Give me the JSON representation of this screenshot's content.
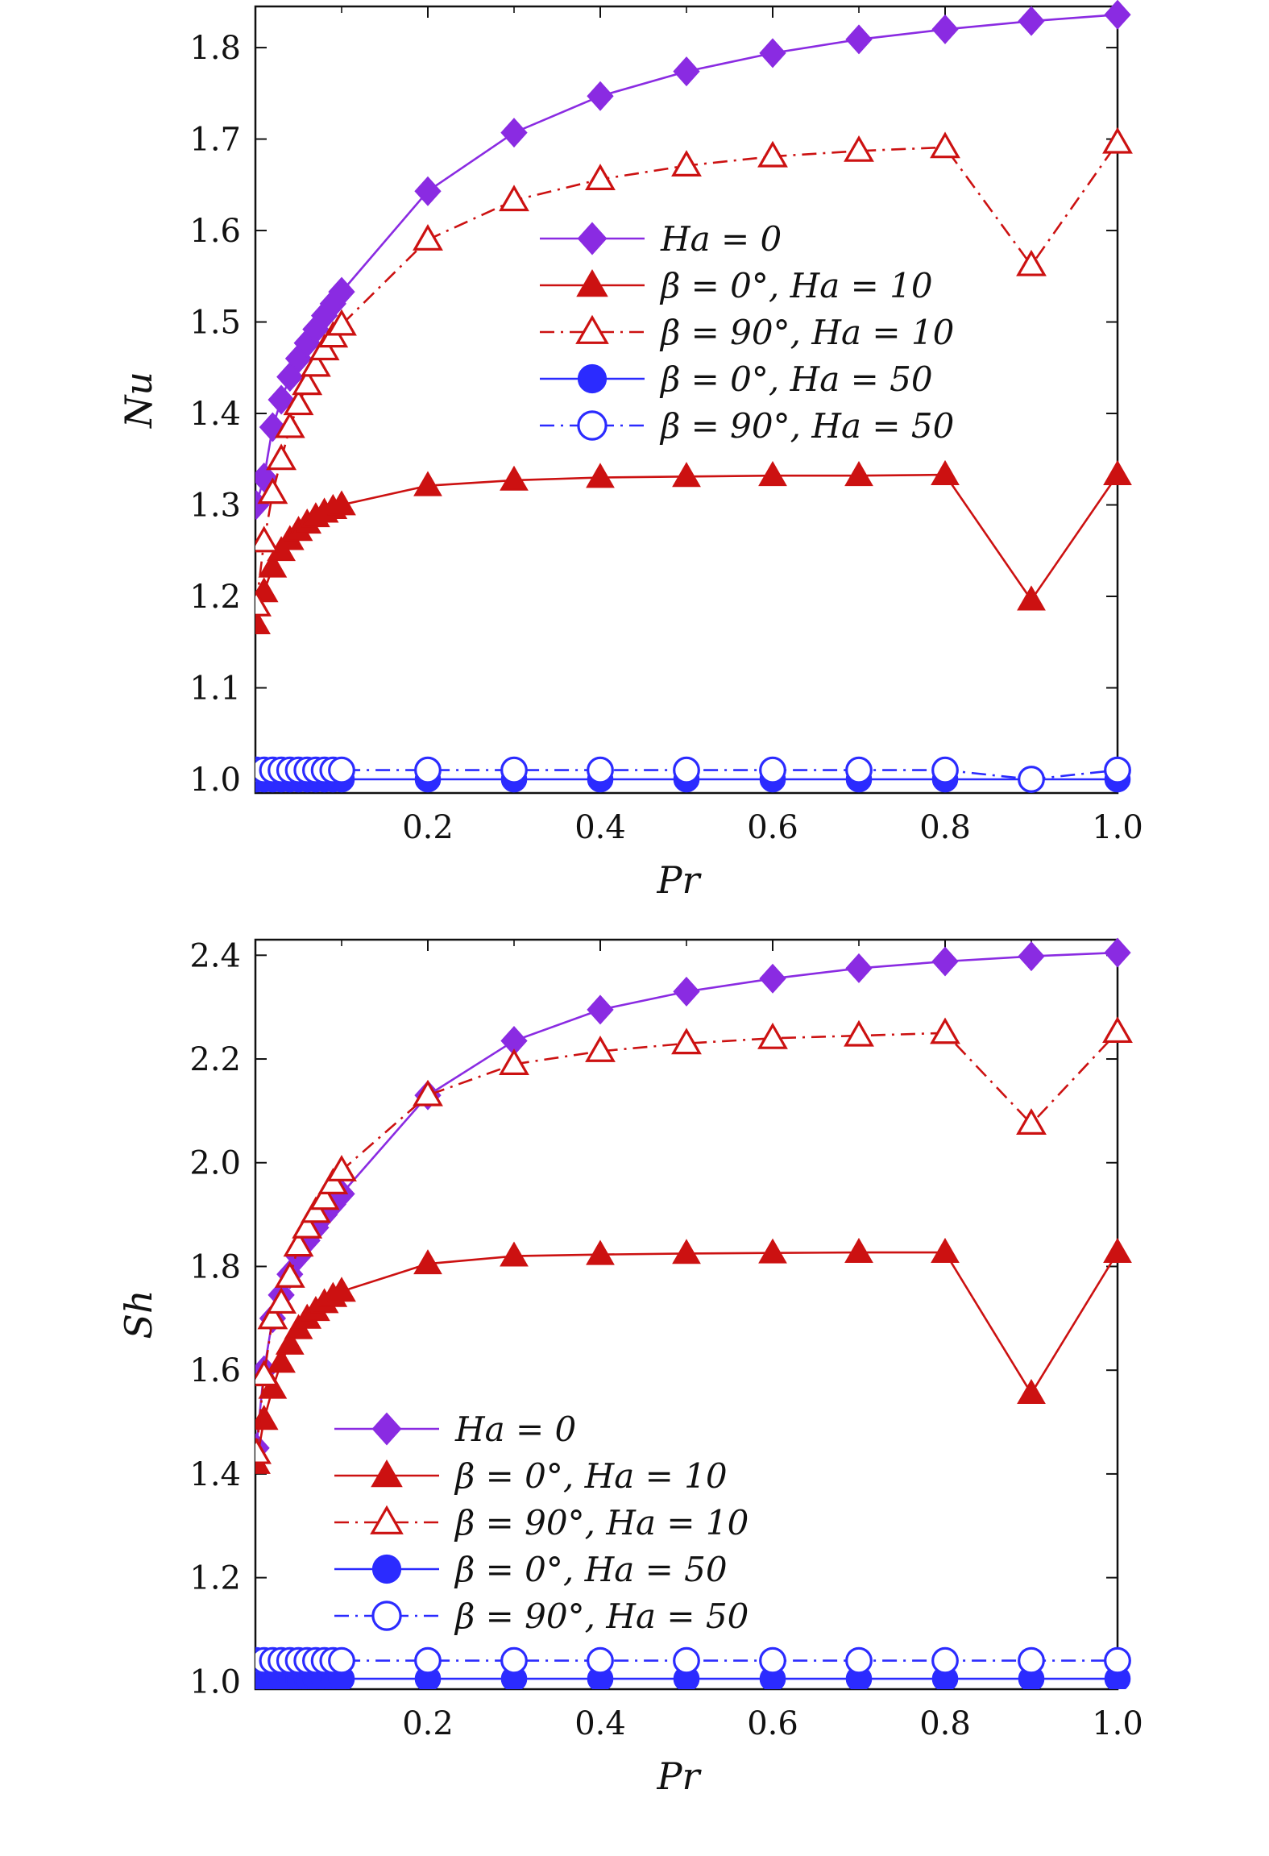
{
  "figure": {
    "panels": 2
  },
  "chart_data": [
    {
      "type": "line",
      "id": "nu",
      "xlabel": "Pr",
      "ylabel": "Nu",
      "xlim": [
        0,
        1.0
      ],
      "ylim": [
        0.985,
        1.845
      ],
      "xticks": [
        0.2,
        0.4,
        0.6,
        0.8,
        1.0
      ],
      "xtick_labels": [
        "0.2",
        "0.4",
        "0.6",
        "0.8",
        "1.0"
      ],
      "yticks": [
        1.0,
        1.1,
        1.2,
        1.3,
        1.4,
        1.5,
        1.6,
        1.7,
        1.8
      ],
      "ytick_labels": [
        "1.0",
        "1.1",
        "1.2",
        "1.3",
        "1.4",
        "1.5",
        "1.6",
        "1.7",
        "1.8"
      ],
      "legend_position": "center-right",
      "x": [
        0.001,
        0.01,
        0.02,
        0.03,
        0.04,
        0.05,
        0.06,
        0.07,
        0.08,
        0.09,
        0.1,
        0.2,
        0.3,
        0.4,
        0.5,
        0.6,
        0.7,
        0.8,
        0.9,
        1.0
      ],
      "series": [
        {
          "name": "Ha = 0",
          "label": "Ha = 0",
          "color": "#8a2be2",
          "marker": "diamond",
          "filled": true,
          "dash": "solid",
          "values": [
            1.3,
            1.33,
            1.385,
            1.415,
            1.44,
            1.46,
            1.477,
            1.492,
            1.507,
            1.52,
            1.533,
            1.643,
            1.707,
            1.747,
            1.774,
            1.794,
            1.809,
            1.82,
            1.829,
            1.836
          ]
        },
        {
          "name": "β = 0°, Ha = 10",
          "label": "β = 0°, Ha = 10",
          "color": "#cc1111",
          "marker": "triangle",
          "filled": true,
          "dash": "solid",
          "values": [
            1.17,
            1.205,
            1.232,
            1.25,
            1.262,
            1.272,
            1.28,
            1.287,
            1.292,
            1.296,
            1.3,
            1.321,
            1.327,
            1.33,
            1.331,
            1.332,
            1.332,
            1.333,
            1.196,
            1.333
          ]
        },
        {
          "name": "β = 90°, Ha = 10",
          "label": "β = 90°, Ha = 10",
          "color": "#cc1111",
          "marker": "triangle",
          "filled": false,
          "dash": "dashdot",
          "values": [
            1.19,
            1.26,
            1.313,
            1.35,
            1.385,
            1.41,
            1.432,
            1.452,
            1.47,
            1.484,
            1.497,
            1.59,
            1.633,
            1.656,
            1.671,
            1.681,
            1.687,
            1.691,
            1.562,
            1.696
          ]
        },
        {
          "name": "β = 0°, Ha = 50",
          "label": "β = 0°, Ha = 50",
          "color": "#2b2bff",
          "marker": "circle",
          "filled": true,
          "dash": "solid",
          "values": [
            1.0,
            1.0,
            1.0,
            1.0,
            1.0,
            1.0,
            1.0,
            1.0,
            1.0,
            1.0,
            1.0,
            1.0,
            1.0,
            1.0,
            1.0,
            1.0,
            1.0,
            1.0,
            1.0,
            1.0
          ]
        },
        {
          "name": "β = 90°, Ha = 50",
          "label": "β = 90°, Ha = 50",
          "color": "#2b2bff",
          "marker": "circle",
          "filled": false,
          "dash": "dashdot",
          "values": [
            1.01,
            1.01,
            1.01,
            1.01,
            1.01,
            1.01,
            1.01,
            1.01,
            1.01,
            1.01,
            1.01,
            1.01,
            1.01,
            1.01,
            1.01,
            1.01,
            1.01,
            1.01,
            1.0,
            1.01
          ]
        }
      ]
    },
    {
      "type": "line",
      "id": "sh",
      "xlabel": "Pr",
      "ylabel": "Sh",
      "xlim": [
        0,
        1.0
      ],
      "ylim": [
        0.985,
        2.43
      ],
      "xticks": [
        0.2,
        0.4,
        0.6,
        0.8,
        1.0
      ],
      "xtick_labels": [
        "0.2",
        "0.4",
        "0.6",
        "0.8",
        "1.0"
      ],
      "yticks": [
        1.0,
        1.2,
        1.4,
        1.6,
        1.8,
        2.0,
        2.2,
        2.4
      ],
      "ytick_labels": [
        "1.0",
        "1.2",
        "1.4",
        "1.6",
        "1.8",
        "2.0",
        "2.2",
        "2.4"
      ],
      "legend_position": "lower-left",
      "x": [
        0.001,
        0.01,
        0.02,
        0.03,
        0.04,
        0.05,
        0.06,
        0.07,
        0.08,
        0.09,
        0.1,
        0.2,
        0.3,
        0.4,
        0.5,
        0.6,
        0.7,
        0.8,
        0.9,
        1.0
      ],
      "series": [
        {
          "name": "Ha = 0",
          "label": "Ha = 0",
          "color": "#8a2be2",
          "marker": "diamond",
          "filled": true,
          "dash": "solid",
          "values": [
            1.45,
            1.6,
            1.7,
            1.745,
            1.785,
            1.82,
            1.85,
            1.875,
            1.9,
            1.92,
            1.94,
            2.13,
            2.235,
            2.295,
            2.33,
            2.355,
            2.375,
            2.388,
            2.398,
            2.405
          ]
        },
        {
          "name": "β = 0°, Ha = 10",
          "label": "β = 0°, Ha = 10",
          "color": "#cc1111",
          "marker": "triangle",
          "filled": true,
          "dash": "solid",
          "values": [
            1.42,
            1.505,
            1.565,
            1.615,
            1.65,
            1.68,
            1.7,
            1.715,
            1.73,
            1.742,
            1.752,
            1.805,
            1.82,
            1.823,
            1.825,
            1.826,
            1.827,
            1.827,
            1.555,
            1.827
          ]
        },
        {
          "name": "β = 90°, Ha = 10",
          "label": "β = 90°, Ha = 10",
          "color": "#cc1111",
          "marker": "triangle",
          "filled": false,
          "dash": "dashdot",
          "values": [
            1.44,
            1.59,
            1.7,
            1.73,
            1.78,
            1.84,
            1.875,
            1.905,
            1.93,
            1.96,
            1.985,
            2.13,
            2.19,
            2.215,
            2.23,
            2.24,
            2.245,
            2.25,
            2.075,
            2.252
          ]
        },
        {
          "name": "β = 0°, Ha = 50",
          "label": "β = 0°, Ha = 50",
          "color": "#2b2bff",
          "marker": "circle",
          "filled": true,
          "dash": "solid",
          "values": [
            1.005,
            1.005,
            1.005,
            1.005,
            1.005,
            1.005,
            1.005,
            1.005,
            1.005,
            1.005,
            1.005,
            1.005,
            1.005,
            1.005,
            1.005,
            1.005,
            1.005,
            1.005,
            1.005,
            1.005
          ]
        },
        {
          "name": "β = 90°, Ha = 50",
          "label": "β = 90°, Ha = 50",
          "color": "#2b2bff",
          "marker": "circle",
          "filled": false,
          "dash": "dashdot",
          "values": [
            1.04,
            1.04,
            1.04,
            1.04,
            1.04,
            1.04,
            1.04,
            1.04,
            1.04,
            1.04,
            1.04,
            1.04,
            1.04,
            1.04,
            1.04,
            1.04,
            1.04,
            1.04,
            1.04,
            1.04
          ]
        }
      ]
    }
  ]
}
